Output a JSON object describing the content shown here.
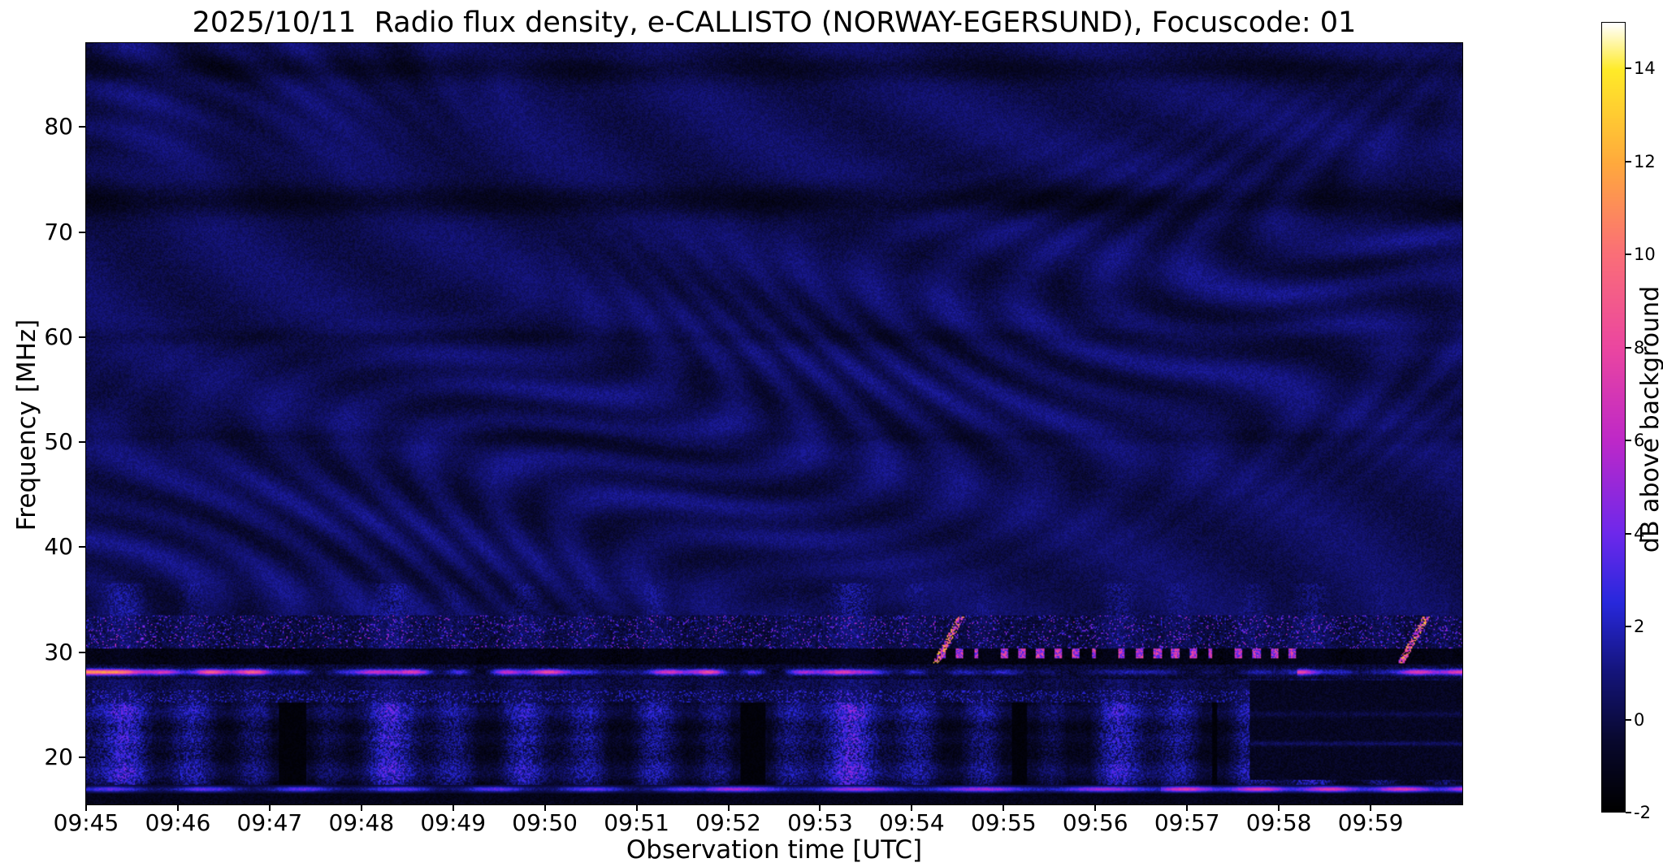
{
  "title": "2025/10/11  Radio flux density, e-CALLISTO (NORWAY-EGERSUND), Focuscode: 01",
  "axes": {
    "x_label": "Observation time [UTC]",
    "y_label": "Frequency [MHz]",
    "x_ticks": [
      "09:45",
      "09:46",
      "09:47",
      "09:48",
      "09:49",
      "09:50",
      "09:51",
      "09:52",
      "09:53",
      "09:54",
      "09:55",
      "09:56",
      "09:57",
      "09:58",
      "09:59"
    ],
    "y_ticks": [
      20,
      30,
      40,
      50,
      60,
      70,
      80
    ]
  },
  "colorbar": {
    "label": "dB above background",
    "ticks": [
      -2,
      0,
      2,
      4,
      6,
      8,
      10,
      12,
      14
    ],
    "min": -2,
    "max": 15
  },
  "chart_data": {
    "type": "heatmap",
    "title": "2025/10/11  Radio flux density, e-CALLISTO (NORWAY-EGERSUND), Focuscode: 01",
    "xlabel": "Observation time [UTC]",
    "ylabel": "Frequency [MHz]",
    "x_range_utc": [
      "09:45:00",
      "10:00:00"
    ],
    "x_tick_labels": [
      "09:45",
      "09:46",
      "09:47",
      "09:48",
      "09:49",
      "09:50",
      "09:51",
      "09:52",
      "09:53",
      "09:54",
      "09:55",
      "09:56",
      "09:57",
      "09:58",
      "09:59"
    ],
    "y_range_mhz": [
      15.5,
      88
    ],
    "y_tick_labels": [
      20,
      30,
      40,
      50,
      60,
      70,
      80
    ],
    "value_label": "dB above background",
    "value_range_db": [
      -2,
      15
    ],
    "colorbar_ticks_db": [
      -2,
      0,
      2,
      4,
      6,
      8,
      10,
      12,
      14
    ],
    "colormap_stops": [
      [
        -2,
        "#000000"
      ],
      [
        -0.5,
        "#08082d"
      ],
      [
        1,
        "#14147a"
      ],
      [
        2.5,
        "#2828dc"
      ],
      [
        4,
        "#6e28eb"
      ],
      [
        6,
        "#be28c8"
      ],
      [
        8,
        "#eb46a0"
      ],
      [
        10,
        "#fa6e78"
      ],
      [
        12,
        "#ffaa3c"
      ],
      [
        14,
        "#ffeb28"
      ],
      [
        15,
        "#ffffff"
      ]
    ],
    "features": {
      "quiet_band_mhz": [
        34,
        88
      ],
      "quiet_level_db": [
        0,
        2
      ],
      "interference_pattern": "low-level wavy moire fringes of ~1-2 dB across the 34-88 MHz quiet band",
      "dark_horizontal_bands_mhz": [
        50.5,
        60,
        73,
        85.5
      ],
      "active_band_mhz": [
        15.5,
        33.5
      ],
      "speckle_band_mhz": [
        30.4,
        33.3
      ],
      "rfi_blackout_band_mhz": [
        28.8,
        30.4
      ],
      "bright_rfi_line_mhz": 28.1,
      "bright_rfi_line_peak_db": 10,
      "secondary_speckle_line_mhz": 25.7,
      "noisy_patch_band_mhz": [
        17.4,
        25.2
      ],
      "bottom_rfi_line_mhz": 17.0,
      "bottom_rfi_line_note": "brightens to pink (~6-9 dB) after ~09:52, strongest after ~09:57",
      "mid_dashes_mhz": 29.9,
      "mid_dashes_time_frac": [
        0.62,
        0.88
      ],
      "right_dark_patch": {
        "time_frac": [
          0.845,
          1.0
        ],
        "mhz": [
          17.8,
          27.3
        ]
      },
      "drifting_bursts": [
        {
          "time_utc": "09:54:15",
          "time_frac": 0.617,
          "mhz": [
            29,
            33.3
          ]
        },
        {
          "time_utc": "09:59:20",
          "time_frac": 0.955,
          "mhz": [
            29,
            33.3
          ]
        }
      ]
    }
  }
}
